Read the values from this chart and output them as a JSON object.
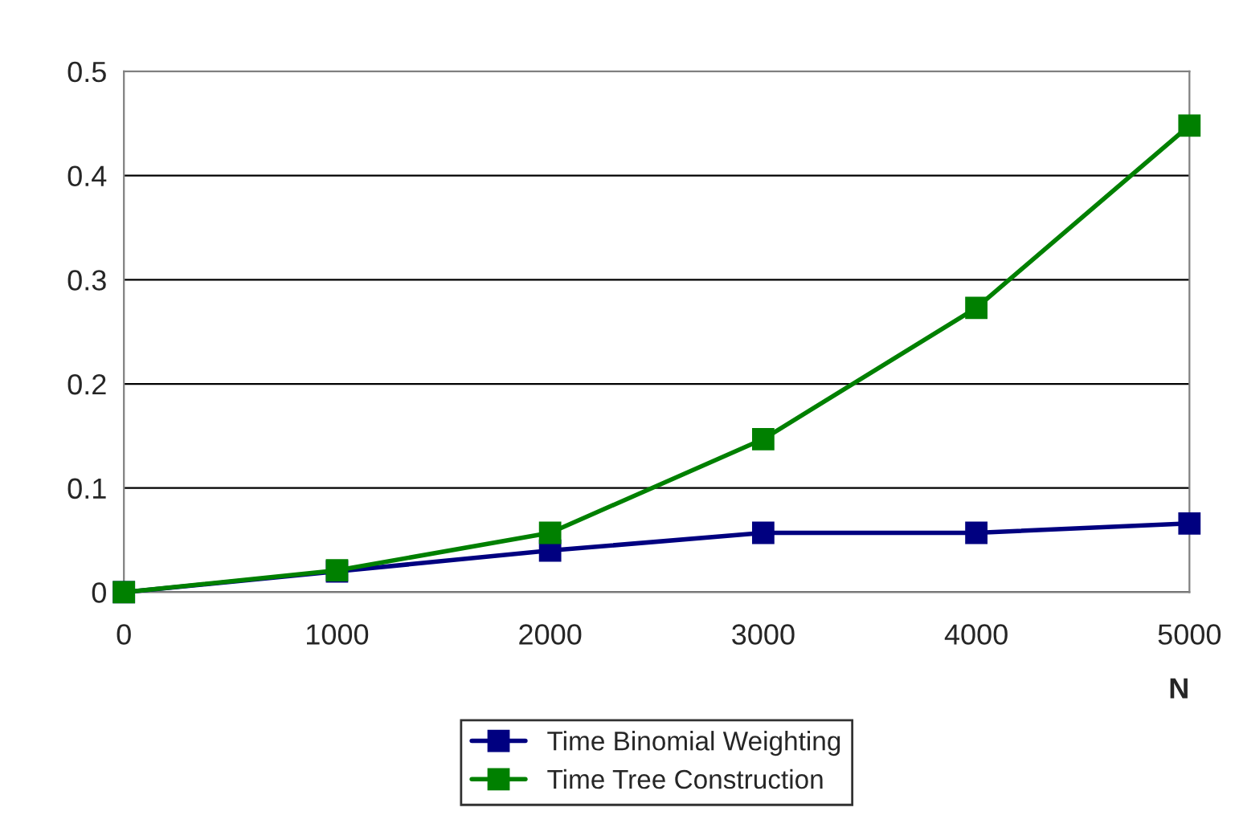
{
  "chart_data": {
    "type": "line",
    "xlabel": "N",
    "x": [
      0,
      1000,
      2000,
      3000,
      4000,
      5000
    ],
    "series": [
      {
        "name": "Time Binomial Weighting",
        "color": "#000080",
        "values": [
          0,
          0.02,
          0.04,
          0.057,
          0.057,
          0.066
        ]
      },
      {
        "name": "Time Tree Construction",
        "color": "#008000",
        "values": [
          0,
          0.021,
          0.057,
          0.147,
          0.273,
          0.448
        ]
      }
    ],
    "xlim": [
      0,
      5000
    ],
    "xticks": [
      0,
      1000,
      2000,
      3000,
      4000,
      5000
    ],
    "ylim": [
      0,
      0.5
    ],
    "yticks": [
      0,
      0.1,
      0.2,
      0.3,
      0.4,
      0.5
    ],
    "grid": "y",
    "legend": "bottom",
    "marker": "square",
    "line_style": "solid"
  }
}
